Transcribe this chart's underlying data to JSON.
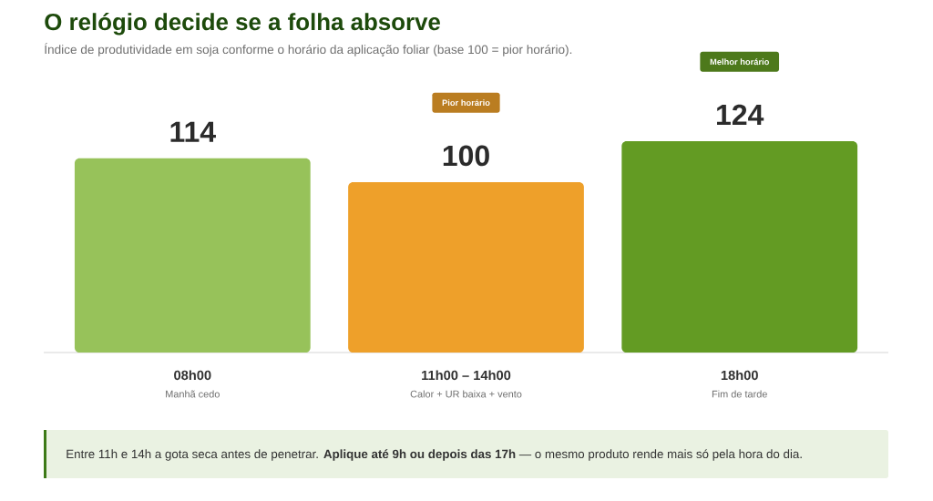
{
  "chart_data": {
    "type": "bar",
    "title": "O relógio decide se a folha absorve",
    "subtitle": "Índice de produtividade em soja conforme o horário da aplicação foliar (base 100 = pior horário).",
    "categories": [
      "08h00",
      "11h00 – 14h00",
      "18h00"
    ],
    "values": [
      114,
      100,
      124
    ],
    "colors": [
      "#97c25a",
      "#eea02a",
      "#639b23"
    ],
    "data_labels": true,
    "tick_labels": "x",
    "annotations": [
      "Manhã cedo",
      "Calor + UR baixa + vento",
      "Fim de tarde",
      "Pior horário",
      "Melhor horário",
      "Entre 11h e 14h a gota seca antes de penetrar. **Aplique até 9h ou depois das 17h** — o mesmo produto rende mais só pela hora do dia."
    ]
  }
}
